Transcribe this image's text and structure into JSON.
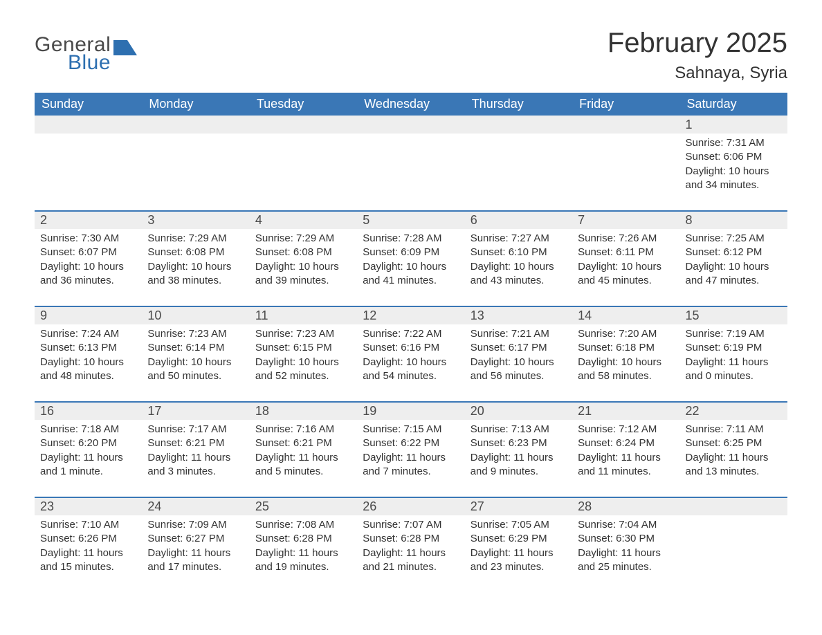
{
  "brand": {
    "word1": "General",
    "word2": "Blue",
    "text_color": "#4a4a4a",
    "accent_color": "#2d6fb0"
  },
  "title": {
    "month_year": "February 2025",
    "location": "Sahnaya, Syria"
  },
  "colors": {
    "header_bg": "#3a77b6",
    "header_text": "#ffffff",
    "daynum_bg": "#eeeeee",
    "row_border": "#3a77b6",
    "body_text": "#333333",
    "page_bg": "#ffffff"
  },
  "typography": {
    "title_fontsize": 40,
    "location_fontsize": 24,
    "dayheader_fontsize": 18,
    "daynum_fontsize": 18,
    "detail_fontsize": 15
  },
  "labels": {
    "sunrise": "Sunrise: ",
    "sunset": "Sunset: ",
    "daylight": "Daylight: "
  },
  "day_headers": [
    "Sunday",
    "Monday",
    "Tuesday",
    "Wednesday",
    "Thursday",
    "Friday",
    "Saturday"
  ],
  "weeks": [
    [
      null,
      null,
      null,
      null,
      null,
      null,
      {
        "n": "1",
        "sunrise": "7:31 AM",
        "sunset": "6:06 PM",
        "daylight": "10 hours and 34 minutes."
      }
    ],
    [
      {
        "n": "2",
        "sunrise": "7:30 AM",
        "sunset": "6:07 PM",
        "daylight": "10 hours and 36 minutes."
      },
      {
        "n": "3",
        "sunrise": "7:29 AM",
        "sunset": "6:08 PM",
        "daylight": "10 hours and 38 minutes."
      },
      {
        "n": "4",
        "sunrise": "7:29 AM",
        "sunset": "6:08 PM",
        "daylight": "10 hours and 39 minutes."
      },
      {
        "n": "5",
        "sunrise": "7:28 AM",
        "sunset": "6:09 PM",
        "daylight": "10 hours and 41 minutes."
      },
      {
        "n": "6",
        "sunrise": "7:27 AM",
        "sunset": "6:10 PM",
        "daylight": "10 hours and 43 minutes."
      },
      {
        "n": "7",
        "sunrise": "7:26 AM",
        "sunset": "6:11 PM",
        "daylight": "10 hours and 45 minutes."
      },
      {
        "n": "8",
        "sunrise": "7:25 AM",
        "sunset": "6:12 PM",
        "daylight": "10 hours and 47 minutes."
      }
    ],
    [
      {
        "n": "9",
        "sunrise": "7:24 AM",
        "sunset": "6:13 PM",
        "daylight": "10 hours and 48 minutes."
      },
      {
        "n": "10",
        "sunrise": "7:23 AM",
        "sunset": "6:14 PM",
        "daylight": "10 hours and 50 minutes."
      },
      {
        "n": "11",
        "sunrise": "7:23 AM",
        "sunset": "6:15 PM",
        "daylight": "10 hours and 52 minutes."
      },
      {
        "n": "12",
        "sunrise": "7:22 AM",
        "sunset": "6:16 PM",
        "daylight": "10 hours and 54 minutes."
      },
      {
        "n": "13",
        "sunrise": "7:21 AM",
        "sunset": "6:17 PM",
        "daylight": "10 hours and 56 minutes."
      },
      {
        "n": "14",
        "sunrise": "7:20 AM",
        "sunset": "6:18 PM",
        "daylight": "10 hours and 58 minutes."
      },
      {
        "n": "15",
        "sunrise": "7:19 AM",
        "sunset": "6:19 PM",
        "daylight": "11 hours and 0 minutes."
      }
    ],
    [
      {
        "n": "16",
        "sunrise": "7:18 AM",
        "sunset": "6:20 PM",
        "daylight": "11 hours and 1 minute."
      },
      {
        "n": "17",
        "sunrise": "7:17 AM",
        "sunset": "6:21 PM",
        "daylight": "11 hours and 3 minutes."
      },
      {
        "n": "18",
        "sunrise": "7:16 AM",
        "sunset": "6:21 PM",
        "daylight": "11 hours and 5 minutes."
      },
      {
        "n": "19",
        "sunrise": "7:15 AM",
        "sunset": "6:22 PM",
        "daylight": "11 hours and 7 minutes."
      },
      {
        "n": "20",
        "sunrise": "7:13 AM",
        "sunset": "6:23 PM",
        "daylight": "11 hours and 9 minutes."
      },
      {
        "n": "21",
        "sunrise": "7:12 AM",
        "sunset": "6:24 PM",
        "daylight": "11 hours and 11 minutes."
      },
      {
        "n": "22",
        "sunrise": "7:11 AM",
        "sunset": "6:25 PM",
        "daylight": "11 hours and 13 minutes."
      }
    ],
    [
      {
        "n": "23",
        "sunrise": "7:10 AM",
        "sunset": "6:26 PM",
        "daylight": "11 hours and 15 minutes."
      },
      {
        "n": "24",
        "sunrise": "7:09 AM",
        "sunset": "6:27 PM",
        "daylight": "11 hours and 17 minutes."
      },
      {
        "n": "25",
        "sunrise": "7:08 AM",
        "sunset": "6:28 PM",
        "daylight": "11 hours and 19 minutes."
      },
      {
        "n": "26",
        "sunrise": "7:07 AM",
        "sunset": "6:28 PM",
        "daylight": "11 hours and 21 minutes."
      },
      {
        "n": "27",
        "sunrise": "7:05 AM",
        "sunset": "6:29 PM",
        "daylight": "11 hours and 23 minutes."
      },
      {
        "n": "28",
        "sunrise": "7:04 AM",
        "sunset": "6:30 PM",
        "daylight": "11 hours and 25 minutes."
      },
      null
    ]
  ]
}
